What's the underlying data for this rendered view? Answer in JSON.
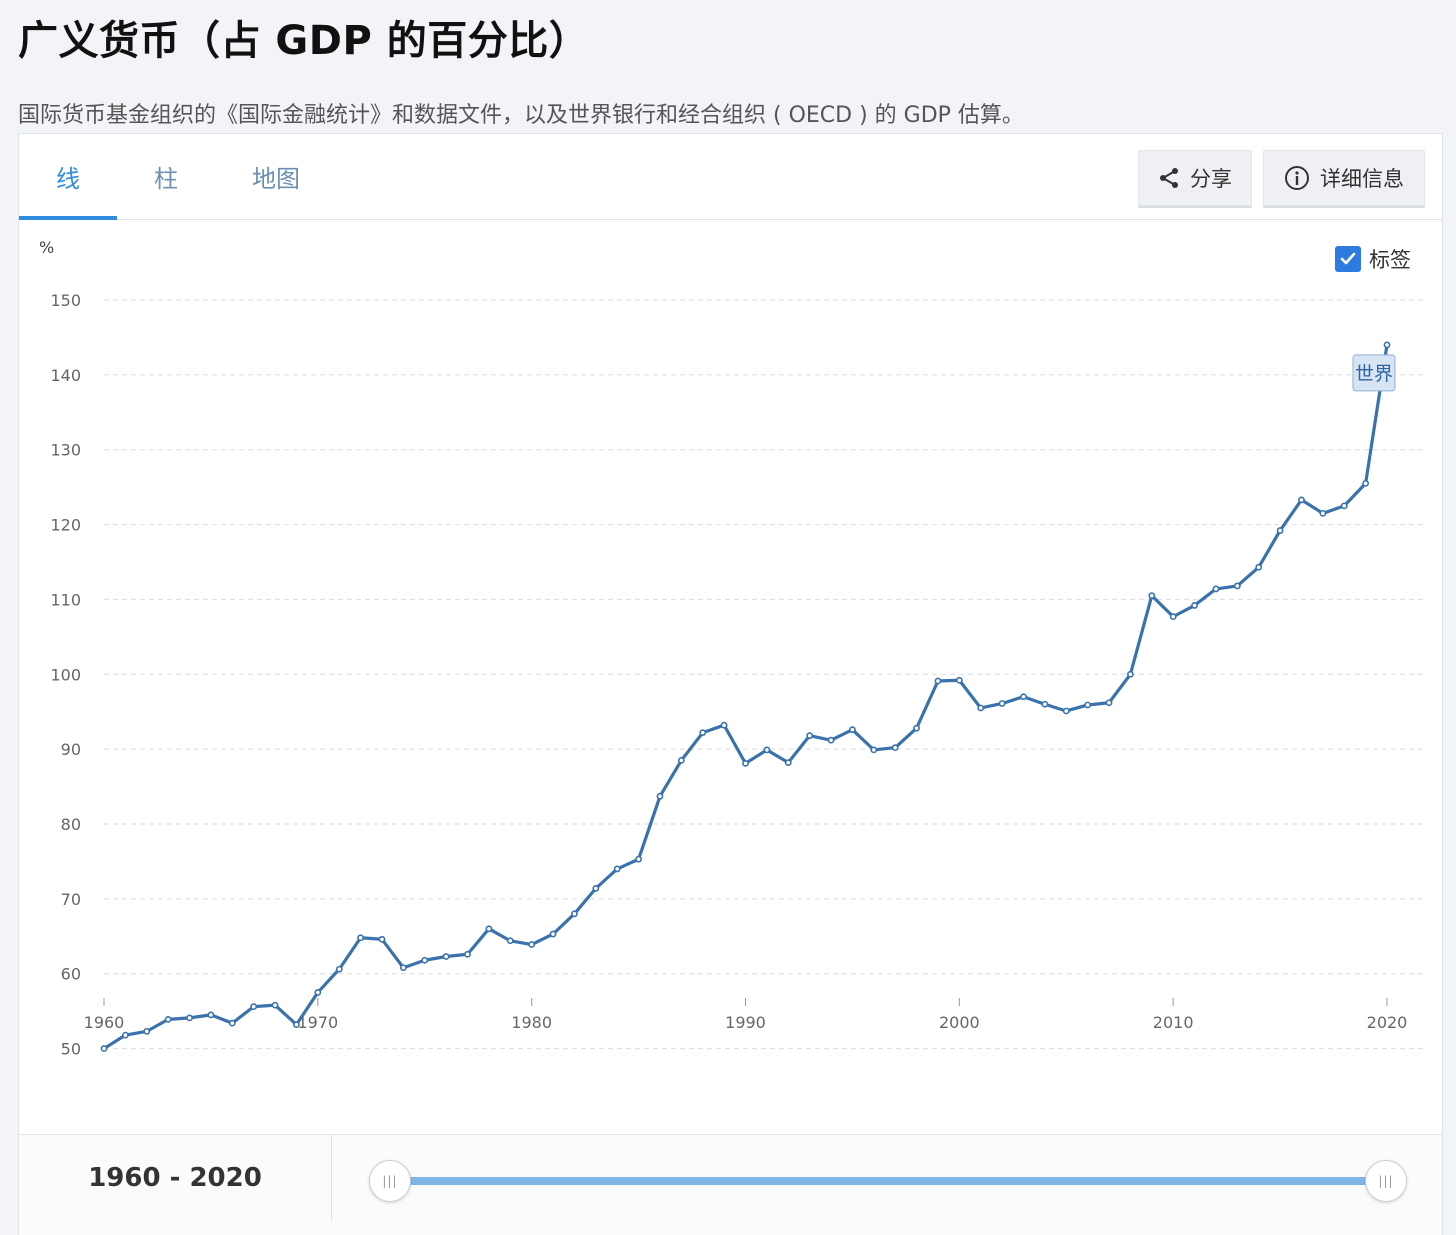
{
  "header": {
    "title": "广义货币（占 GDP 的百分比）",
    "subtitle": "国际货币基金组织的《国际金融统计》和数据文件，以及世界银行和经合组织 ( OECD ) 的 GDP 估算。"
  },
  "tabs": [
    {
      "label": "线",
      "active": true
    },
    {
      "label": "柱",
      "active": false
    },
    {
      "label": "地图",
      "active": false
    }
  ],
  "toolbar": {
    "share_label": "分享",
    "details_label": "详细信息",
    "share_icon": "share-icon",
    "details_icon": "info-icon"
  },
  "legend": {
    "label": "标签",
    "checked": true
  },
  "footer": {
    "range_label": "1960 - 2020",
    "range_start": 1960,
    "range_end": 2020
  },
  "colors": {
    "accent": "#2e8be0",
    "line": "#3a72ab",
    "slider": "#7fb6e6"
  },
  "chart_data": {
    "type": "line",
    "title": "",
    "xlabel": "",
    "ylabel": "%",
    "xlim": [
      1960,
      2020
    ],
    "ylim": [
      45,
      150
    ],
    "x_ticks": [
      1960,
      1970,
      1980,
      1990,
      2000,
      2010,
      2020
    ],
    "y_ticks": [
      50,
      60,
      70,
      80,
      90,
      100,
      110,
      120,
      130,
      140,
      150
    ],
    "grid": true,
    "series": [
      {
        "name": "世界",
        "color": "#3a72ab",
        "x": [
          1960,
          1961,
          1962,
          1963,
          1964,
          1965,
          1966,
          1967,
          1968,
          1969,
          1970,
          1971,
          1972,
          1973,
          1974,
          1975,
          1976,
          1977,
          1978,
          1979,
          1980,
          1981,
          1982,
          1983,
          1984,
          1985,
          1986,
          1987,
          1988,
          1989,
          1990,
          1991,
          1992,
          1993,
          1994,
          1995,
          1996,
          1997,
          1998,
          1999,
          2000,
          2001,
          2002,
          2003,
          2004,
          2005,
          2006,
          2007,
          2008,
          2009,
          2010,
          2011,
          2012,
          2013,
          2014,
          2015,
          2016,
          2017,
          2018,
          2019,
          2020
        ],
        "values": [
          50.0,
          51.8,
          52.3,
          53.9,
          54.1,
          54.5,
          53.4,
          55.6,
          55.8,
          53.2,
          57.5,
          60.6,
          64.8,
          64.6,
          60.8,
          61.8,
          62.3,
          62.6,
          66.0,
          64.4,
          63.9,
          65.3,
          68.0,
          71.4,
          74.0,
          75.3,
          83.7,
          88.5,
          92.2,
          93.2,
          88.1,
          89.9,
          88.2,
          91.8,
          91.2,
          92.6,
          89.9,
          90.2,
          92.8,
          99.1,
          99.2,
          95.5,
          96.1,
          97.0,
          96.0,
          95.1,
          95.9,
          96.2,
          100.0,
          110.5,
          107.7,
          109.2,
          111.4,
          111.8,
          114.3,
          119.2,
          123.3,
          121.5,
          122.5,
          125.5,
          144.0
        ]
      }
    ]
  }
}
